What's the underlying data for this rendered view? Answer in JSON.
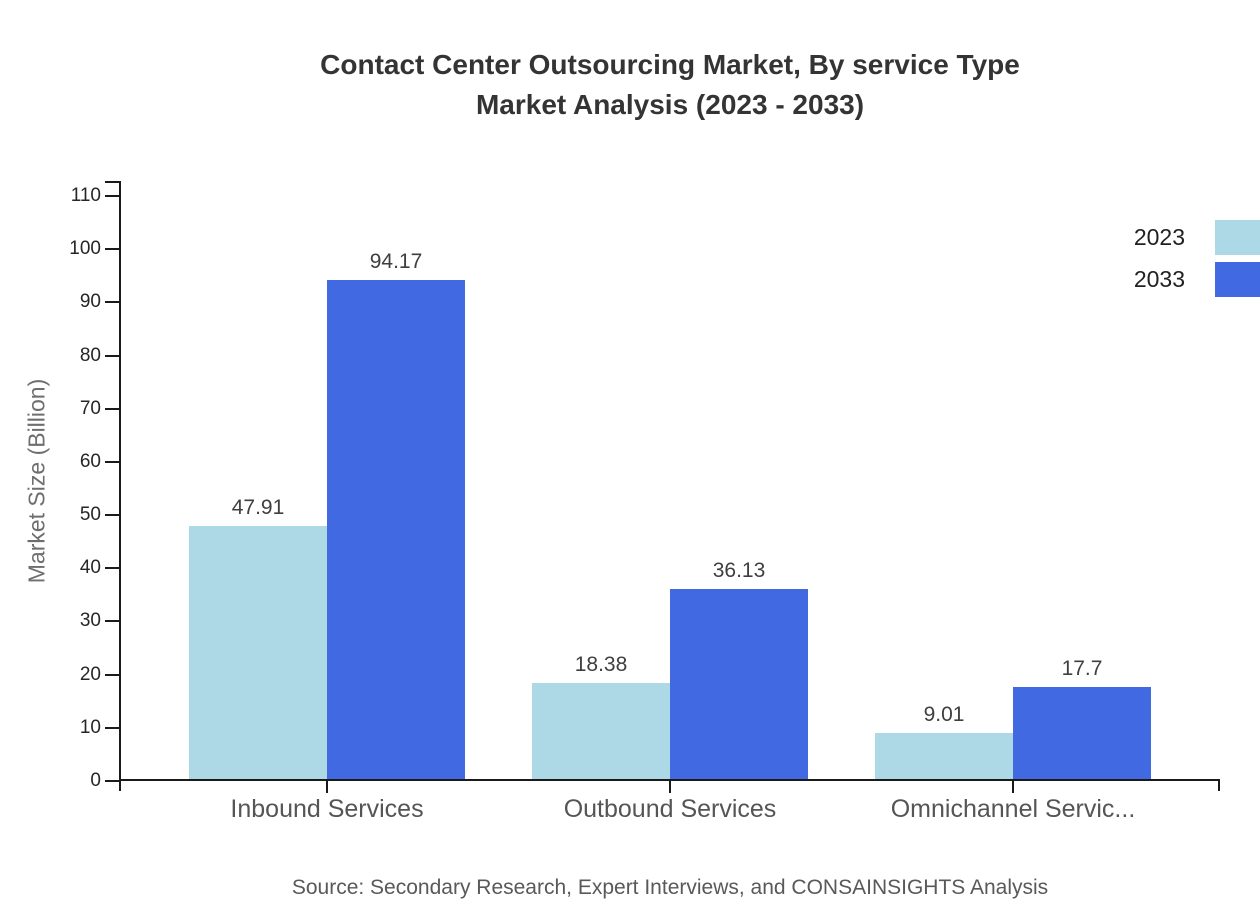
{
  "chart_data": {
    "type": "bar",
    "title": "Contact Center Outsourcing Market, By service Type",
    "subtitle": "Market Analysis (2023 - 2033)",
    "ylabel": "Market Size (Billion)",
    "xlabel": "",
    "ylim": [
      0,
      110
    ],
    "yticks": [
      0,
      10,
      20,
      30,
      40,
      50,
      60,
      70,
      80,
      90,
      100,
      110
    ],
    "grid": false,
    "legend_position": "top-right",
    "categories": [
      "Inbound Services",
      "Outbound Services",
      "Omnichannel Servic..."
    ],
    "series": [
      {
        "name": "2023",
        "color": "#ADD8E6",
        "values": [
          47.91,
          18.38,
          9.01
        ],
        "labels": [
          "47.91",
          "18.38",
          "9.01"
        ]
      },
      {
        "name": "2033",
        "color": "#4169E1",
        "values": [
          94.17,
          36.13,
          17.7
        ],
        "labels": [
          "94.17",
          "36.13",
          "17.7"
        ]
      }
    ],
    "source": "Source: Secondary Research, Expert Interviews, and CONSAINSIGHTS Analysis"
  },
  "colors": {
    "background": "#ffffff",
    "title": "#343434",
    "axis": "#1a1a1a",
    "tick_label": "#262626",
    "category_label": "#555555",
    "ylabel": "#6e6e6e",
    "data_label": "#3f3f3f",
    "legend_label": "#212121",
    "source": "#595959",
    "series_2023": "#ADD8E6",
    "series_2033": "#4169E1"
  }
}
